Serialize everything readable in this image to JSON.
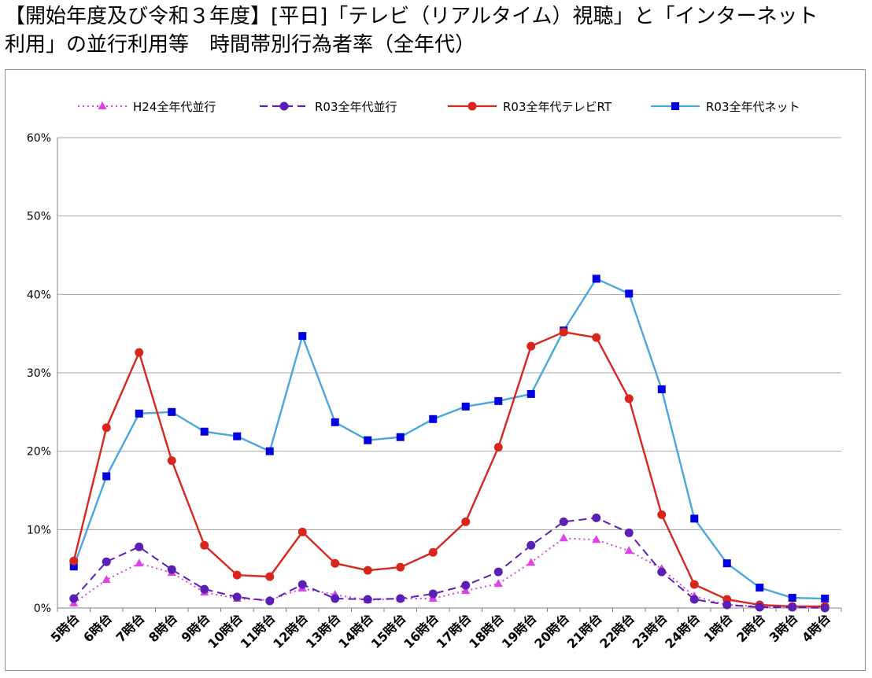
{
  "title_lines": [
    "【開始年度及び令和３年度】[平日]「テレビ（リアルタイム）視聴」と「インターネット",
    "利用」の並行利用等　時間帯別行為者率（全年代）"
  ],
  "chart_data": {
    "type": "line",
    "title": "【開始年度及び令和３年度】[平日]「テレビ（リアルタイム）視聴」と「インターネット利用」の並行利用等　時間帯別行為者率（全年代）",
    "xlabel": "",
    "ylabel": "",
    "ylim": [
      0,
      60
    ],
    "yticks": [
      "0%",
      "10%",
      "20%",
      "30%",
      "40%",
      "50%",
      "60%"
    ],
    "grid": "horizontal",
    "legend_position": "top",
    "categories": [
      "5時台",
      "6時台",
      "7時台",
      "8時台",
      "9時台",
      "10時台",
      "11時台",
      "12時台",
      "13時台",
      "14時台",
      "15時台",
      "16時台",
      "17時台",
      "18時台",
      "19時台",
      "20時台",
      "21時台",
      "22時台",
      "23時台",
      "24時台",
      "1時台",
      "2時台",
      "3時台",
      "4時台"
    ],
    "series": [
      {
        "name": "H24全年代並行",
        "color": "#e040e8",
        "marker": "triangle",
        "dash": "dotted",
        "values": [
          0.6,
          3.6,
          5.7,
          4.5,
          2.0,
          1.2,
          1.0,
          2.5,
          1.7,
          1.0,
          1.2,
          1.2,
          2.2,
          3.1,
          5.8,
          8.9,
          8.7,
          7.3,
          5.0,
          1.5,
          0.4,
          0.2,
          0.1,
          0.1
        ]
      },
      {
        "name": "R03全年代並行",
        "color": "#5a1fb4",
        "marker": "circle",
        "dash": "dashed",
        "values": [
          1.2,
          5.9,
          7.8,
          4.9,
          2.4,
          1.4,
          0.9,
          3.0,
          1.2,
          1.1,
          1.2,
          1.8,
          2.9,
          4.6,
          8.0,
          11.0,
          11.5,
          9.6,
          4.6,
          1.1,
          0.4,
          0.1,
          0.1,
          0.0
        ]
      },
      {
        "name": "R03全年代テレビRT",
        "color": "#d9261c",
        "marker": "circle",
        "dash": "solid",
        "values": [
          6.0,
          23.0,
          32.6,
          18.8,
          8.0,
          4.2,
          4.0,
          9.7,
          5.7,
          4.8,
          5.2,
          7.1,
          11.0,
          20.5,
          33.4,
          35.2,
          34.5,
          26.7,
          11.9,
          3.0,
          1.1,
          0.4,
          0.2,
          0.2
        ]
      },
      {
        "name": "R03全年代ネット",
        "color": "#4aa6dc",
        "marker": "square",
        "markerColor": "#0000e0",
        "dash": "solid",
        "values": [
          5.3,
          16.8,
          24.8,
          25.0,
          22.5,
          21.9,
          20.0,
          34.7,
          23.7,
          21.4,
          21.8,
          24.1,
          25.7,
          26.4,
          27.3,
          35.4,
          42.0,
          40.1,
          27.9,
          11.4,
          5.7,
          2.6,
          1.3,
          1.2
        ]
      }
    ]
  }
}
